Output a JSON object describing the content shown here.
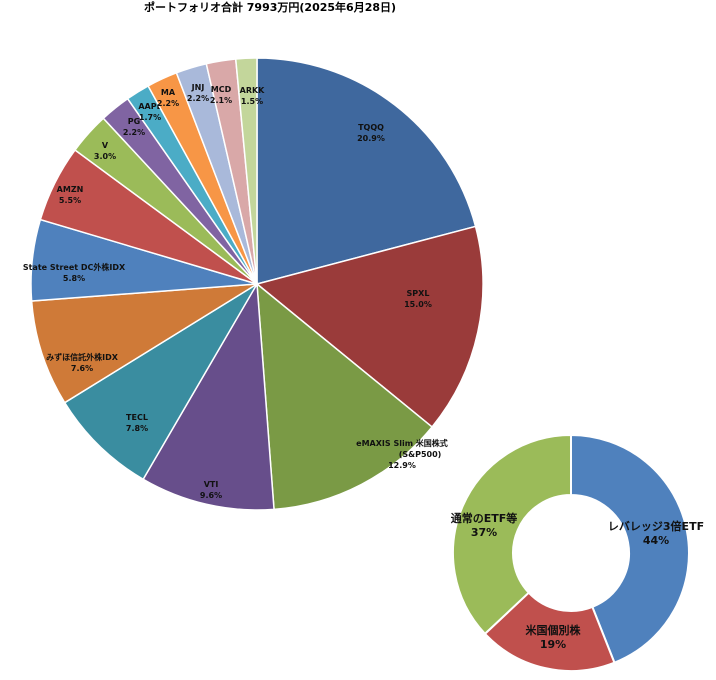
{
  "title": "ポートフォリオ合計 7993万円(2025年6月28日)",
  "chart_data": [
    {
      "type": "pie",
      "slices": [
        {
          "name": "TQQQ",
          "value": 20.9,
          "label": "20.9%",
          "color": "#3F689E"
        },
        {
          "name": "SPXL",
          "value": 15.0,
          "label": "15.0%",
          "color": "#9A3B3A"
        },
        {
          "name": "eMAXIS Slim 米国株式",
          "name2": "(S&P500)",
          "value": 12.9,
          "label": "12.9%",
          "color": "#7A9A45"
        },
        {
          "name": "VTI",
          "value": 9.6,
          "label": "9.6%",
          "color": "#674E8B"
        },
        {
          "name": "TECL",
          "value": 7.8,
          "label": "7.8%",
          "color": "#3A8DA0"
        },
        {
          "name": "みずほ信託外株IDX",
          "value": 7.6,
          "label": "7.6%",
          "color": "#CF7A38"
        },
        {
          "name": "State Street DC外株IDX",
          "value": 5.8,
          "label": "5.8%",
          "color": "#4F81BD"
        },
        {
          "name": "AMZN",
          "value": 5.5,
          "label": "5.5%",
          "color": "#C0504D"
        },
        {
          "name": "V",
          "value": 3.0,
          "label": "3.0%",
          "color": "#9BBB59"
        },
        {
          "name": "PG",
          "value": 2.2,
          "label": "2.2%",
          "color": "#8064A2"
        },
        {
          "name": "AAPL",
          "value": 1.7,
          "label": "1.7%",
          "color": "#4BACC6"
        },
        {
          "name": "MA",
          "value": 2.2,
          "label": "2.2%",
          "color": "#F79646"
        },
        {
          "name": "JNJ",
          "value": 2.2,
          "label": "2.2%",
          "color": "#A9B9DA"
        },
        {
          "name": "MCD",
          "value": 2.1,
          "label": "2.1%",
          "color": "#D9A8A8"
        },
        {
          "name": "ARKK",
          "value": 1.5,
          "label": "1.5%",
          "color": "#C3D69B"
        }
      ]
    },
    {
      "type": "pie",
      "donut": true,
      "slices": [
        {
          "name": "レバレッジ3倍ETF",
          "value": 44,
          "label": "44%",
          "color": "#4F81BD"
        },
        {
          "name": "米国個別株",
          "value": 19,
          "label": "19%",
          "color": "#C0504D"
        },
        {
          "name": "通常のETF等",
          "value": 37,
          "label": "37%",
          "color": "#9BBB59"
        }
      ]
    }
  ]
}
